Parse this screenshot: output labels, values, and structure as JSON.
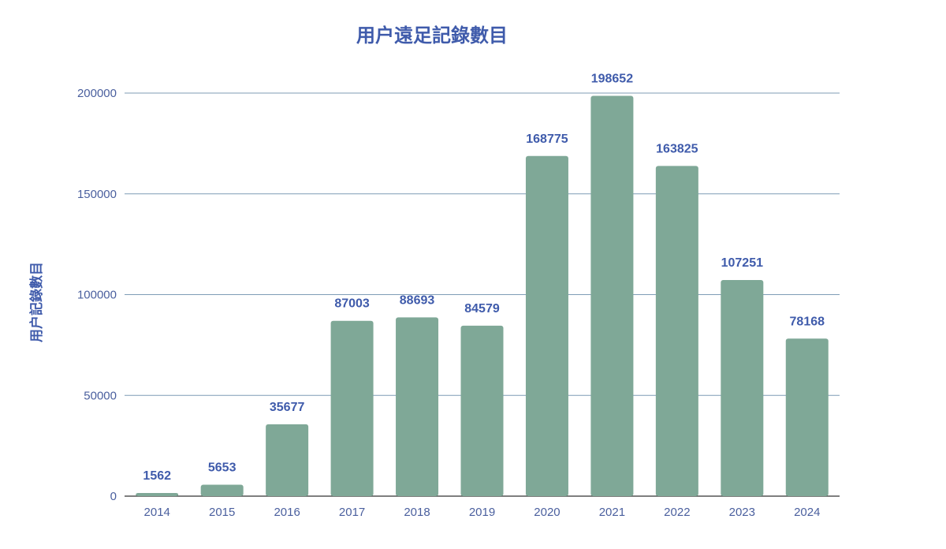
{
  "colors": {
    "bar": "#7fa897",
    "text": "#3f5bab",
    "grid": "#7f9cb6"
  },
  "chart_data": {
    "type": "bar",
    "title": "用户遠足記錄數目",
    "xlabel": "",
    "ylabel": "用户記錄數目",
    "categories": [
      "2014",
      "2015",
      "2016",
      "2017",
      "2018",
      "2019",
      "2020",
      "2021",
      "2022",
      "2023",
      "2024"
    ],
    "series": [
      {
        "values": [
          1562,
          5653,
          35677,
          87003,
          88693,
          84579,
          168775,
          198652,
          163825,
          107251,
          78168
        ]
      }
    ],
    "ylim": [
      0,
      200000
    ],
    "yticks": [
      0,
      50000,
      100000,
      150000,
      200000
    ],
    "grid": true,
    "legend": "none",
    "data_labels": true
  }
}
